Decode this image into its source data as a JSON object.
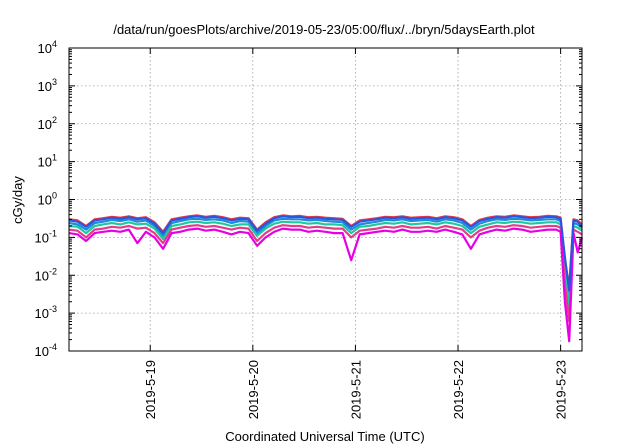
{
  "chart_data": {
    "type": "line",
    "title": "/data/run/goesPlots/archive/2019-05-23/05:00/flux/../bryn/5daysEarth.plot",
    "xlabel": "Coordinated Universal Time (UTC)",
    "ylabel": "cGy/day",
    "yscale": "log",
    "ylim": [
      0.0001,
      10000
    ],
    "xlim": [
      "2019-05-18T05:00",
      "2019-05-23T05:00"
    ],
    "grid": true,
    "y_ticks": [
      {
        "mantissa": "10",
        "exp": "-4"
      },
      {
        "mantissa": "10",
        "exp": "-3"
      },
      {
        "mantissa": "10",
        "exp": "-2"
      },
      {
        "mantissa": "10",
        "exp": "-1"
      },
      {
        "mantissa": "10",
        "exp": "0"
      },
      {
        "mantissa": "10",
        "exp": "1"
      },
      {
        "mantissa": "10",
        "exp": "2"
      },
      {
        "mantissa": "10",
        "exp": "3"
      },
      {
        "mantissa": "10",
        "exp": "4"
      }
    ],
    "x_ticks": [
      "2019-5-19",
      "2019-5-20",
      "2019-5-21",
      "2019-5-22",
      "2019-5-23"
    ],
    "x_tick_dates": [
      "2019-05-19T00:00",
      "2019-05-20T00:00",
      "2019-05-21T00:00",
      "2019-05-22T00:00",
      "2019-05-23T00:00"
    ],
    "x": [
      "2019-05-18T05:00",
      "2019-05-18T07:00",
      "2019-05-18T09:00",
      "2019-05-18T11:00",
      "2019-05-18T13:00",
      "2019-05-18T15:00",
      "2019-05-18T17:00",
      "2019-05-18T19:00",
      "2019-05-18T21:00",
      "2019-05-18T23:00",
      "2019-05-19T01:00",
      "2019-05-19T03:00",
      "2019-05-19T05:00",
      "2019-05-19T07:00",
      "2019-05-19T09:00",
      "2019-05-19T11:00",
      "2019-05-19T13:00",
      "2019-05-19T15:00",
      "2019-05-19T17:00",
      "2019-05-19T19:00",
      "2019-05-19T21:00",
      "2019-05-19T23:00",
      "2019-05-20T01:00",
      "2019-05-20T03:00",
      "2019-05-20T05:00",
      "2019-05-20T07:00",
      "2019-05-20T09:00",
      "2019-05-20T11:00",
      "2019-05-20T13:00",
      "2019-05-20T15:00",
      "2019-05-20T17:00",
      "2019-05-20T19:00",
      "2019-05-20T21:00",
      "2019-05-20T23:00",
      "2019-05-21T01:00",
      "2019-05-21T03:00",
      "2019-05-21T05:00",
      "2019-05-21T07:00",
      "2019-05-21T09:00",
      "2019-05-21T11:00",
      "2019-05-21T13:00",
      "2019-05-21T15:00",
      "2019-05-21T17:00",
      "2019-05-21T19:00",
      "2019-05-21T21:00",
      "2019-05-21T23:00",
      "2019-05-22T01:00",
      "2019-05-22T03:00",
      "2019-05-22T05:00",
      "2019-05-22T07:00",
      "2019-05-22T09:00",
      "2019-05-22T11:00",
      "2019-05-22T13:00",
      "2019-05-22T15:00",
      "2019-05-22T17:00",
      "2019-05-22T19:00",
      "2019-05-22T21:00",
      "2019-05-22T23:00",
      "2019-05-23T00:00",
      "2019-05-23T01:00",
      "2019-05-23T02:00",
      "2019-05-23T03:00",
      "2019-05-23T04:00",
      "2019-05-23T05:00"
    ],
    "series": [
      {
        "color": "#e8383d",
        "values": [
          0.3,
          0.28,
          0.2,
          0.3,
          0.32,
          0.35,
          0.33,
          0.36,
          0.32,
          0.34,
          0.25,
          0.14,
          0.3,
          0.33,
          0.36,
          0.38,
          0.35,
          0.37,
          0.34,
          0.3,
          0.33,
          0.32,
          0.16,
          0.25,
          0.34,
          0.38,
          0.36,
          0.37,
          0.34,
          0.35,
          0.33,
          0.32,
          0.31,
          0.2,
          0.28,
          0.3,
          0.32,
          0.35,
          0.34,
          0.36,
          0.33,
          0.34,
          0.35,
          0.32,
          0.36,
          0.34,
          0.3,
          0.2,
          0.29,
          0.33,
          0.36,
          0.35,
          0.38,
          0.36,
          0.34,
          0.35,
          0.37,
          0.36,
          0.33,
          0.025,
          0.005,
          0.3,
          0.28,
          0.22
        ]
      },
      {
        "color": "#1a8cd8",
        "values": [
          0.24,
          0.22,
          0.16,
          0.24,
          0.26,
          0.29,
          0.27,
          0.3,
          0.26,
          0.28,
          0.2,
          0.11,
          0.24,
          0.27,
          0.3,
          0.31,
          0.29,
          0.3,
          0.28,
          0.24,
          0.27,
          0.26,
          0.13,
          0.2,
          0.28,
          0.31,
          0.3,
          0.3,
          0.28,
          0.29,
          0.27,
          0.26,
          0.25,
          0.16,
          0.22,
          0.24,
          0.26,
          0.29,
          0.28,
          0.3,
          0.27,
          0.28,
          0.29,
          0.26,
          0.3,
          0.28,
          0.24,
          0.16,
          0.23,
          0.27,
          0.3,
          0.29,
          0.31,
          0.3,
          0.28,
          0.29,
          0.3,
          0.3,
          0.27,
          0.02,
          0.003,
          0.24,
          0.22,
          0.18
        ]
      },
      {
        "color": "#20c8a0",
        "values": [
          0.2,
          0.19,
          0.13,
          0.2,
          0.22,
          0.24,
          0.22,
          0.25,
          0.22,
          0.23,
          0.17,
          0.09,
          0.2,
          0.22,
          0.25,
          0.26,
          0.24,
          0.25,
          0.23,
          0.2,
          0.22,
          0.22,
          0.11,
          0.17,
          0.23,
          0.26,
          0.25,
          0.25,
          0.23,
          0.24,
          0.22,
          0.22,
          0.21,
          0.13,
          0.19,
          0.2,
          0.22,
          0.24,
          0.23,
          0.25,
          0.22,
          0.23,
          0.24,
          0.22,
          0.25,
          0.23,
          0.2,
          0.13,
          0.19,
          0.22,
          0.25,
          0.24,
          0.26,
          0.25,
          0.23,
          0.24,
          0.25,
          0.25,
          0.22,
          0.012,
          0.0015,
          0.2,
          0.18,
          0.15
        ]
      },
      {
        "color": "#e23c8a",
        "values": [
          0.16,
          0.15,
          0.1,
          0.16,
          0.17,
          0.19,
          0.18,
          0.2,
          0.17,
          0.18,
          0.13,
          0.07,
          0.16,
          0.18,
          0.2,
          0.21,
          0.19,
          0.2,
          0.18,
          0.16,
          0.18,
          0.17,
          0.08,
          0.13,
          0.18,
          0.21,
          0.2,
          0.2,
          0.18,
          0.19,
          0.18,
          0.17,
          0.17,
          0.1,
          0.15,
          0.16,
          0.17,
          0.19,
          0.18,
          0.2,
          0.18,
          0.18,
          0.19,
          0.17,
          0.2,
          0.18,
          0.16,
          0.1,
          0.15,
          0.18,
          0.2,
          0.19,
          0.21,
          0.2,
          0.18,
          0.19,
          0.2,
          0.2,
          0.18,
          0.006,
          0.0006,
          0.16,
          0.14,
          0.12
        ]
      },
      {
        "color": "#e600e6",
        "values": [
          0.13,
          0.12,
          0.08,
          0.13,
          0.14,
          0.15,
          0.14,
          0.16,
          0.07,
          0.14,
          0.1,
          0.05,
          0.13,
          0.14,
          0.16,
          0.17,
          0.15,
          0.16,
          0.14,
          0.12,
          0.14,
          0.13,
          0.06,
          0.1,
          0.14,
          0.17,
          0.16,
          0.16,
          0.14,
          0.15,
          0.14,
          0.13,
          0.13,
          0.025,
          0.12,
          0.13,
          0.14,
          0.15,
          0.14,
          0.16,
          0.14,
          0.14,
          0.15,
          0.14,
          0.16,
          0.14,
          0.12,
          0.05,
          0.12,
          0.14,
          0.16,
          0.15,
          0.17,
          0.16,
          0.14,
          0.15,
          0.16,
          0.16,
          0.14,
          0.002,
          0.00018,
          0.13,
          0.04,
          0.1
        ]
      },
      {
        "color": "#2a55e0",
        "values": [
          0.28,
          0.26,
          0.19,
          0.28,
          0.3,
          0.33,
          0.31,
          0.34,
          0.3,
          0.32,
          0.23,
          0.13,
          0.28,
          0.31,
          0.34,
          0.36,
          0.33,
          0.35,
          0.32,
          0.28,
          0.31,
          0.3,
          0.15,
          0.23,
          0.32,
          0.36,
          0.34,
          0.35,
          0.32,
          0.33,
          0.31,
          0.3,
          0.29,
          0.19,
          0.26,
          0.28,
          0.3,
          0.33,
          0.32,
          0.34,
          0.31,
          0.32,
          0.33,
          0.3,
          0.34,
          0.32,
          0.28,
          0.19,
          0.27,
          0.31,
          0.34,
          0.33,
          0.36,
          0.34,
          0.32,
          0.33,
          0.35,
          0.34,
          0.31,
          0.03,
          0.004,
          0.28,
          0.26,
          0.2
        ]
      }
    ]
  }
}
